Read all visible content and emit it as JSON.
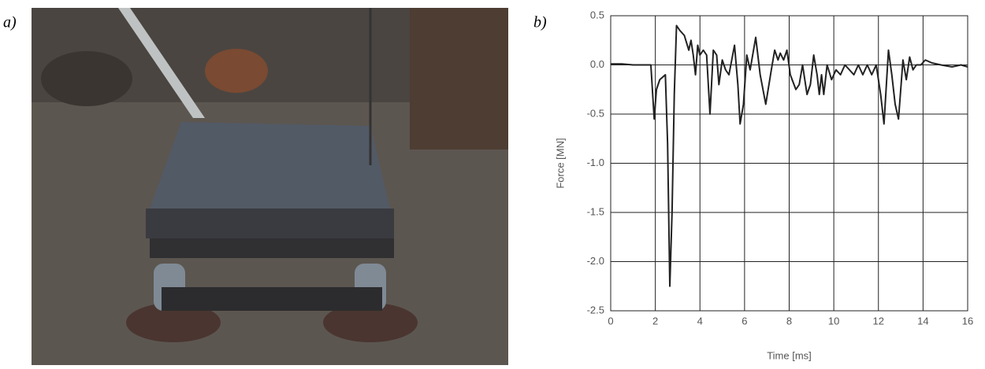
{
  "panel_labels": [
    "a)",
    "b)"
  ],
  "chart_data": {
    "type": "line",
    "xlabel": "Time [ms]",
    "ylabel": "Force [MN]",
    "x": [
      0,
      0.5,
      1,
      1.5,
      1.8,
      1.95,
      2.05,
      2.2,
      2.35,
      2.45,
      2.55,
      2.65,
      2.75,
      2.85,
      2.95,
      3.1,
      3.3,
      3.5,
      3.6,
      3.7,
      3.8,
      3.9,
      4.0,
      4.15,
      4.3,
      4.45,
      4.6,
      4.75,
      4.85,
      5.0,
      5.15,
      5.3,
      5.55,
      5.7,
      5.8,
      5.95,
      6.1,
      6.25,
      6.5,
      6.7,
      6.95,
      7.2,
      7.35,
      7.5,
      7.6,
      7.75,
      7.9,
      8.05,
      8.3,
      8.45,
      8.6,
      8.8,
      8.95,
      9.1,
      9.25,
      9.35,
      9.45,
      9.55,
      9.7,
      9.9,
      10.1,
      10.3,
      10.5,
      10.7,
      10.9,
      11.1,
      11.3,
      11.5,
      11.7,
      11.9,
      12.1,
      12.25,
      12.45,
      12.6,
      12.75,
      12.9,
      13.1,
      13.25,
      13.4,
      13.55,
      13.7,
      13.9,
      14.1,
      14.4,
      14.8,
      15.3,
      15.7,
      16
    ],
    "values": [
      0.01,
      0.01,
      0.0,
      0.0,
      0.0,
      -0.55,
      -0.25,
      -0.15,
      -0.12,
      -0.1,
      -0.8,
      -2.25,
      -1.5,
      -0.3,
      0.4,
      0.35,
      0.3,
      0.15,
      0.25,
      0.1,
      -0.1,
      0.2,
      0.1,
      0.15,
      0.1,
      -0.5,
      0.15,
      0.1,
      -0.2,
      0.05,
      -0.05,
      -0.1,
      0.2,
      -0.2,
      -0.6,
      -0.4,
      0.1,
      -0.05,
      0.28,
      -0.1,
      -0.4,
      -0.05,
      0.15,
      0.05,
      0.12,
      0.05,
      0.15,
      -0.1,
      -0.25,
      -0.2,
      0.0,
      -0.3,
      -0.2,
      0.1,
      -0.1,
      -0.3,
      -0.1,
      -0.3,
      0.0,
      -0.15,
      -0.05,
      -0.1,
      0.0,
      -0.05,
      -0.1,
      0.0,
      -0.1,
      0.0,
      -0.1,
      0.0,
      -0.3,
      -0.6,
      0.15,
      -0.1,
      -0.4,
      -0.55,
      0.05,
      -0.15,
      0.08,
      -0.05,
      0.0,
      0.0,
      0.05,
      0.02,
      0.0,
      -0.02,
      0.0,
      -0.02
    ],
    "color": "#222222",
    "xlim": [
      0,
      16
    ],
    "xticks": [
      0,
      2,
      4,
      6,
      8,
      10,
      12,
      14,
      16
    ],
    "ylim": [
      -2.5,
      0.5
    ],
    "yticks": [
      0.5,
      {
        "value": 0,
        "label": "0.0"
      },
      -0.5,
      {
        "value": -1,
        "label": "-1.0"
      },
      -1.5,
      {
        "value": -2,
        "label": "-2.0"
      },
      -2.5
    ],
    "grid": true
  }
}
